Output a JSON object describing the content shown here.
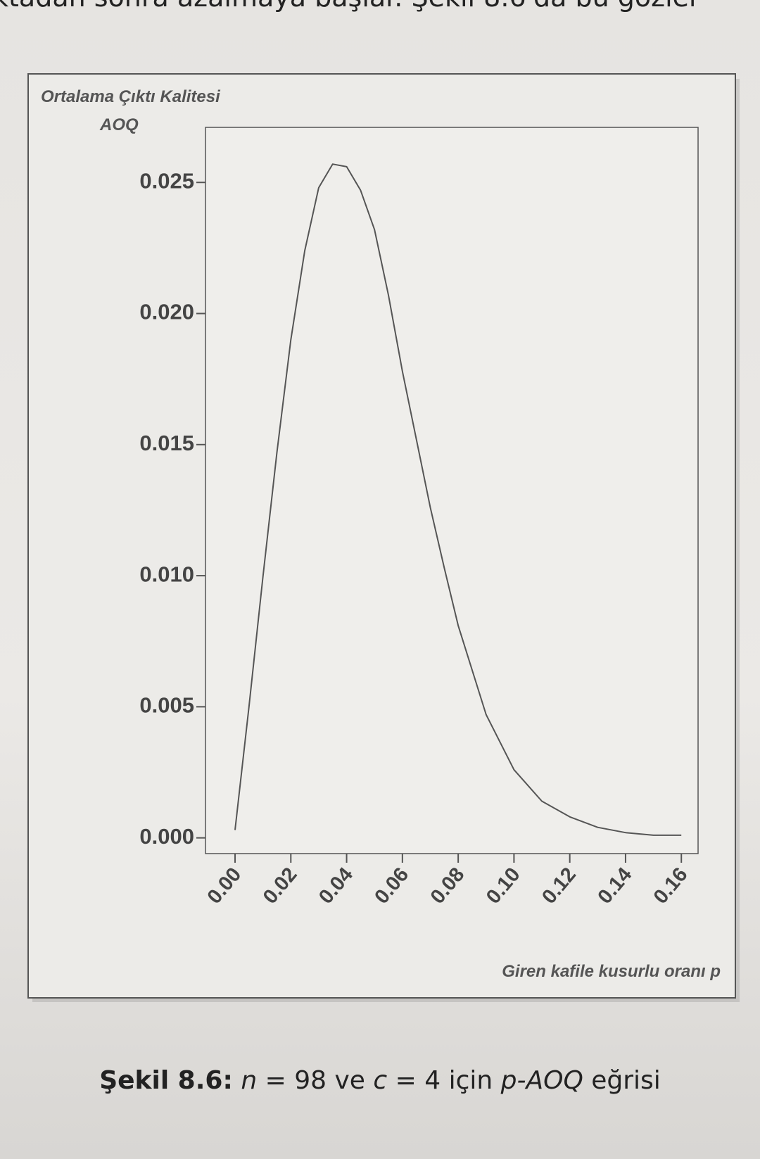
{
  "page_text": "ktadan sonra azalmaya başlar. Şekil 8.6'da bu gözler",
  "chart_data": {
    "type": "line",
    "ylabel": [
      "Ortalama Çıktı Kalitesi",
      "AOQ"
    ],
    "xlabel": "Giren kafile kusurlu oranı p",
    "x": [
      0,
      0.005,
      0.01,
      0.015,
      0.02,
      0.025,
      0.03,
      0.035,
      0.04,
      0.045,
      0.05,
      0.055,
      0.06,
      0.065,
      0.07,
      0.075,
      0.08,
      0.09,
      0.1,
      0.11,
      0.12,
      0.13,
      0.14,
      0.15,
      0.16
    ],
    "values": [
      0.0003,
      0.005,
      0.00997,
      0.0147,
      0.019,
      0.0224,
      0.0248,
      0.0257,
      0.0256,
      0.0247,
      0.0232,
      0.0207,
      0.0178,
      0.0152,
      0.0126,
      0.0103,
      0.0081,
      0.0047,
      0.0026,
      0.0014,
      0.0008,
      0.0004,
      0.0002,
      0.0001,
      0.0001
    ],
    "color": "#555555",
    "xlim": [
      -0.0106,
      0.166
    ],
    "ylim": [
      -0.0006,
      0.0271
    ],
    "xticks": [
      {
        "value": 0,
        "label": "0.00"
      },
      0.02,
      0.04,
      0.06,
      0.08,
      {
        "value": 0.1,
        "label": "0.10"
      },
      0.12,
      0.14,
      0.16
    ],
    "yticks": [
      {
        "value": 0,
        "label": "0.000"
      },
      {
        "value": 0.005,
        "label": "0.005"
      },
      {
        "value": 0.01,
        "label": "0.010"
      },
      {
        "value": 0.015,
        "label": "0.015"
      },
      {
        "value": 0.02,
        "label": "0.020"
      },
      {
        "value": 0.025,
        "label": "0.025"
      }
    ]
  },
  "caption": [
    "Şekil 8.6:",
    "n",
    "= 98 ve",
    "c",
    "= 4 için",
    "p-AOQ",
    "eğrisi"
  ]
}
